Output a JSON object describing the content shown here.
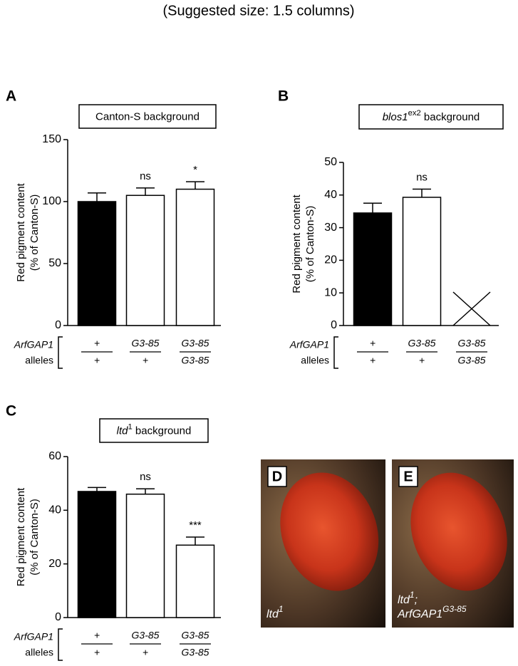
{
  "header": "(Suggested size: 1.5 columns)",
  "chart_data": [
    {
      "type": "bar",
      "panel": "A",
      "title": [
        "Canton-S background"
      ],
      "ylabel": [
        "Red pigment content",
        "(% of Canton-S)"
      ],
      "row_label": [
        "ArfGAP1",
        "alleles"
      ],
      "categories": [
        {
          "top": "+",
          "bottom": "+"
        },
        {
          "top": "G3-85",
          "bottom": "+"
        },
        {
          "top": "G3-85",
          "bottom": "G3-85"
        }
      ],
      "values": [
        100,
        105,
        110
      ],
      "errors": [
        7,
        6,
        6
      ],
      "annotations": [
        null,
        "ns",
        "*"
      ],
      "colors": [
        "#000000",
        "#ffffff",
        "#ffffff"
      ],
      "ylim": [
        0,
        150
      ],
      "yticks": [
        0,
        50,
        100,
        150
      ]
    },
    {
      "type": "bar",
      "panel": "B",
      "title": [
        "blos1",
        "ex2",
        " background"
      ],
      "ylabel": [
        "Red pigment content",
        "(% of Canton-S)"
      ],
      "row_label": [
        "ArfGAP1",
        "alleles"
      ],
      "categories": [
        {
          "top": "+",
          "bottom": "+"
        },
        {
          "top": "G3-85",
          "bottom": "+"
        },
        {
          "top": "G3-85",
          "bottom": "G3-85"
        }
      ],
      "values": [
        34.5,
        39.3,
        null
      ],
      "errors": [
        3,
        2.5,
        null
      ],
      "annotations": [
        null,
        "ns",
        null
      ],
      "colors": [
        "#000000",
        "#ffffff",
        "#ffffff"
      ],
      "ylim": [
        0,
        50
      ],
      "yticks": [
        0,
        10,
        20,
        30,
        40,
        50
      ]
    },
    {
      "type": "bar",
      "panel": "C",
      "title": [
        "ltd",
        "1",
        " background"
      ],
      "ylabel": [
        "Red pigment content",
        "(% of Canton-S)"
      ],
      "row_label": [
        "ArfGAP1",
        "alleles"
      ],
      "categories": [
        {
          "top": "+",
          "bottom": "+"
        },
        {
          "top": "G3-85",
          "bottom": "+"
        },
        {
          "top": "G3-85",
          "bottom": "G3-85"
        }
      ],
      "values": [
        47,
        46,
        27
      ],
      "errors": [
        1.5,
        2,
        3
      ],
      "annotations": [
        null,
        "ns",
        "***"
      ],
      "colors": [
        "#000000",
        "#ffffff",
        "#ffffff"
      ],
      "ylim": [
        0,
        60
      ],
      "yticks": [
        0,
        20,
        40,
        60
      ]
    }
  ],
  "photos": [
    {
      "panel": "D",
      "caption": [
        [
          "ltd",
          "1"
        ]
      ]
    },
    {
      "panel": "E",
      "caption": [
        [
          "ltd",
          "1",
          ";"
        ],
        [
          "ArfGAP1",
          "G3-85"
        ]
      ]
    }
  ]
}
